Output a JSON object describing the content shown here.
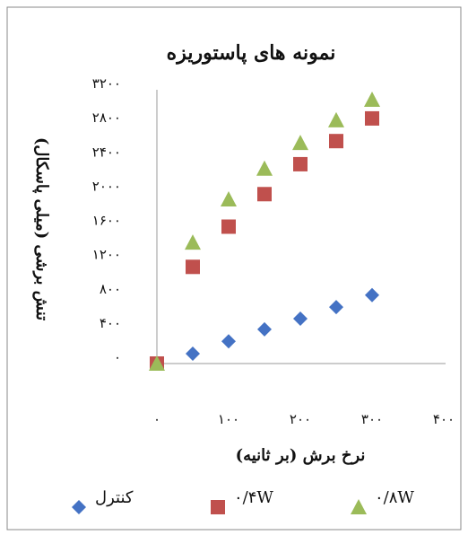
{
  "chart_data": {
    "type": "scatter",
    "title": "نمونه های پاستوریزه",
    "x_label": "نرخ برش (بر ثانیه)",
    "y_label": "تنش برشی (میلی پاسکال)",
    "x": [
      0,
      50,
      100,
      150,
      200,
      250,
      300
    ],
    "series": [
      {
        "name": "کنترل",
        "color": "#4472c4",
        "marker": "diamond",
        "values": [
          0,
          115,
          260,
          400,
          525,
          660,
          800
        ]
      },
      {
        "name": "۰/۴W",
        "color": "#c0504d",
        "marker": "square",
        "values": [
          0,
          1130,
          1600,
          1980,
          2330,
          2600,
          2865
        ]
      },
      {
        "name": "۰/۸W",
        "color": "#9bbb59",
        "marker": "triangle",
        "values": [
          0,
          1415,
          1920,
          2280,
          2580,
          2845,
          3085
        ]
      }
    ],
    "xlim": [
      0,
      400
    ],
    "xticks": [
      {
        "value": 0,
        "label": "۰"
      },
      {
        "value": 100,
        "label": "۱۰۰"
      },
      {
        "value": 200,
        "label": "۲۰۰"
      },
      {
        "value": 300,
        "label": "۳۰۰"
      },
      {
        "value": 400,
        "label": "۴۰۰"
      }
    ],
    "ylim": [
      0,
      3200
    ],
    "yticks": [
      {
        "value": 0,
        "label": "۰"
      },
      {
        "value": 400,
        "label": "۴۰۰"
      },
      {
        "value": 800,
        "label": "۸۰۰"
      },
      {
        "value": 1200,
        "label": "۱۲۰۰"
      },
      {
        "value": 1600,
        "label": "۱۶۰۰"
      },
      {
        "value": 2000,
        "label": "۲۰۰۰"
      },
      {
        "value": 2400,
        "label": "۲۴۰۰"
      },
      {
        "value": 2800,
        "label": "۲۸۰۰"
      },
      {
        "value": 3200,
        "label": "۳۲۰۰"
      }
    ]
  }
}
